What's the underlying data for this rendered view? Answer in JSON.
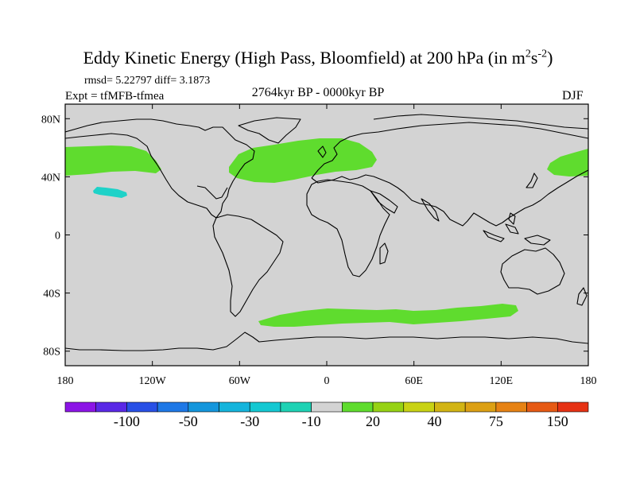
{
  "title_main": "Eddy Kinetic Energy (High Pass, Bloomfield) at 200 hPa (in m",
  "title_unit_sup1": "2",
  "title_unit_mid": "s",
  "title_unit_sup2": "-2",
  "title_close": ")",
  "stats": "rmsd= 5.22797 diff= 3.1873",
  "experiment": "Expt = tfMFB-tfmea",
  "period": "2764kyr BP - 0000kyr BP",
  "season": "DJF",
  "map": {
    "projection": "cylindrical equidistant",
    "lon_range": [
      -180,
      180
    ],
    "lat_range": [
      -90,
      90
    ],
    "lat_ticks": [
      {
        "value": 80,
        "label": "80N"
      },
      {
        "value": 40,
        "label": "40N"
      },
      {
        "value": 0,
        "label": "0"
      },
      {
        "value": -40,
        "label": "40S"
      },
      {
        "value": -80,
        "label": "80S"
      }
    ],
    "lon_ticks": [
      {
        "value": -180,
        "label": "180"
      },
      {
        "value": -120,
        "label": "120W"
      },
      {
        "value": -60,
        "label": "60W"
      },
      {
        "value": 0,
        "label": "0"
      },
      {
        "value": 60,
        "label": "60E"
      },
      {
        "value": 120,
        "label": "120E"
      },
      {
        "value": 180,
        "label": "180"
      }
    ],
    "background_color": "#d3d3d3",
    "anomaly_regions": [
      {
        "name": "north-pacific-positive",
        "color": "#5fdc2e",
        "category": "10 to 20",
        "lon_min": -180,
        "lon_max": -128,
        "lat_min": 40,
        "lat_max": 60
      },
      {
        "name": "north-atlantic-positive",
        "color": "#5fdc2e",
        "category": "10 to 20",
        "lon_min": -67,
        "lon_max": 33,
        "lat_min": 35,
        "lat_max": 66
      },
      {
        "name": "west-pacific-positive",
        "color": "#5fdc2e",
        "category": "10 to 20",
        "lon_min": 152,
        "lon_max": 180,
        "lat_min": 41,
        "lat_max": 60
      },
      {
        "name": "southern-ocean-positive",
        "color": "#5fdc2e",
        "category": "10 to 20",
        "lon_min": -46,
        "lon_max": 130,
        "lat_min": -60,
        "lat_max": -47
      },
      {
        "name": "subtropical-pacific-negative",
        "color": "#1ed2c8",
        "category": "-30 to -10",
        "lon_min": -163,
        "lon_max": -140,
        "lat_min": 26,
        "lat_max": 33
      }
    ]
  },
  "colorbar": {
    "colors": [
      "#8c14e6",
      "#5a28e6",
      "#2850e6",
      "#1e78e6",
      "#1496dc",
      "#14b4dc",
      "#14c8d2",
      "#1ed2b4",
      "#d3d3d3",
      "#5fdc2e",
      "#96d214",
      "#c8d214",
      "#d2b414",
      "#dca014",
      "#e68214",
      "#e65a14",
      "#e63214"
    ],
    "labels": [
      {
        "text": "-100",
        "boundary": 2
      },
      {
        "text": "-50",
        "boundary": 4
      },
      {
        "text": "-30",
        "boundary": 6
      },
      {
        "text": "-10",
        "boundary": 8
      },
      {
        "text": "20",
        "boundary": 10
      },
      {
        "text": "40",
        "boundary": 12
      },
      {
        "text": "75",
        "boundary": 14
      },
      {
        "text": "150",
        "boundary": 16
      }
    ]
  }
}
